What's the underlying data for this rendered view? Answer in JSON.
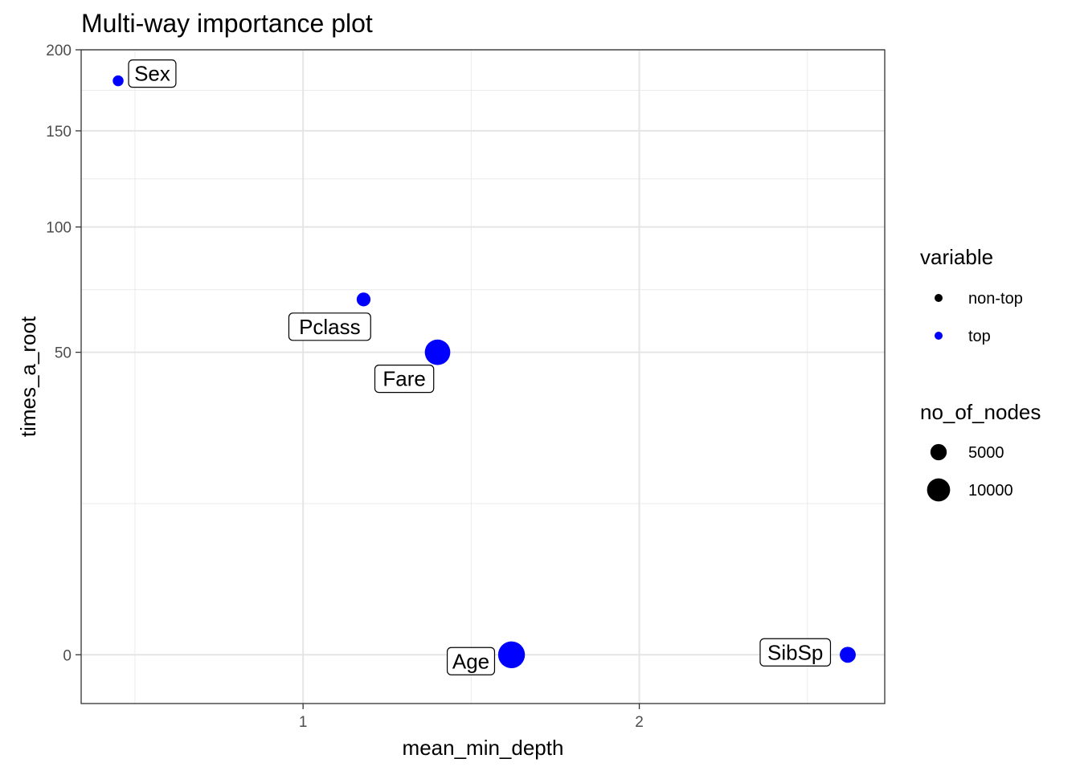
{
  "chart_data": {
    "type": "scatter",
    "title": "Multi-way importance plot",
    "xlabel": "mean_min_depth",
    "ylabel": "times_a_root",
    "x_ticks": [
      "1",
      "2"
    ],
    "x_tick_values": [
      1,
      2
    ],
    "y_ticks": [
      "0",
      "50",
      "100",
      "150",
      "200"
    ],
    "y_tick_values": [
      0,
      50,
      100,
      150,
      200
    ],
    "y_scale": "sqrt",
    "xlim": [
      0.34,
      2.73
    ],
    "ylim": [
      -1.3,
      200
    ],
    "grid": true,
    "points": [
      {
        "label": "Sex",
        "x": 0.45,
        "y": 180,
        "group": "top",
        "no_of_nodes": 2200
      },
      {
        "label": "Pclass",
        "x": 1.18,
        "y": 69,
        "group": "top",
        "no_of_nodes": 3600
      },
      {
        "label": "Fare",
        "x": 1.4,
        "y": 50,
        "group": "top",
        "no_of_nodes": 12200
      },
      {
        "label": "Age",
        "x": 1.62,
        "y": 0,
        "group": "top",
        "no_of_nodes": 13500
      },
      {
        "label": "SibSp",
        "x": 2.62,
        "y": 0,
        "group": "top",
        "no_of_nodes": 4800
      }
    ],
    "legend": {
      "placement": "right",
      "color_title": "variable",
      "color_items": [
        {
          "label": "non-top",
          "color": "#000000"
        },
        {
          "label": "top",
          "color": "#0000ff"
        }
      ],
      "size_title": "no_of_nodes",
      "size_items": [
        {
          "label": "5000",
          "value": 5000
        },
        {
          "label": "10000",
          "value": 10000
        }
      ]
    },
    "colors": {
      "top": "#0000ff",
      "non-top": "#000000"
    }
  }
}
